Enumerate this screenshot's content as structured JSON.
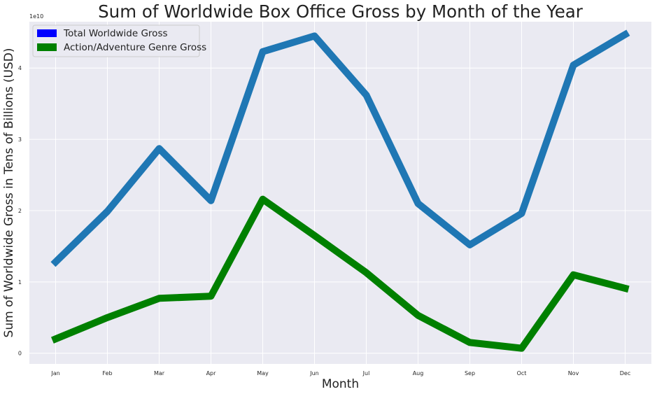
{
  "chart_data": {
    "type": "line",
    "title": "Sum of Worldwide Box Office Gross by Month of the Year",
    "xlabel": "Month",
    "ylabel": "Sum of Worldwide Gross in Tens of Billions (USD)",
    "y_offset_label": "1e10",
    "categories": [
      "Jan",
      "Feb",
      "Mar",
      "Apr",
      "May",
      "Jun",
      "Jul",
      "Aug",
      "Sep",
      "Oct",
      "Nov",
      "Dec"
    ],
    "yticks": [
      "0",
      "1",
      "2",
      "3",
      "4"
    ],
    "ylim": [
      -0.15,
      4.65
    ],
    "grid": true,
    "legend_position": "top-left",
    "series": [
      {
        "name": "Total Worldwide Gross",
        "legend_color": "#0000ff",
        "line_color": "#1f77b4",
        "values": [
          1.28,
          1.99,
          2.87,
          2.14,
          4.23,
          4.45,
          3.62,
          2.1,
          1.52,
          1.96,
          4.04,
          4.47
        ]
      },
      {
        "name": "Action/Adventure Genre Gross",
        "legend_color": "#008000",
        "line_color": "#008000",
        "values": [
          0.2,
          0.5,
          0.77,
          0.8,
          2.16,
          1.65,
          1.13,
          0.53,
          0.15,
          0.07,
          1.1,
          0.91
        ]
      }
    ]
  },
  "colors": {
    "plot_background": "#eaeaf2",
    "grid": "#ffffff"
  }
}
